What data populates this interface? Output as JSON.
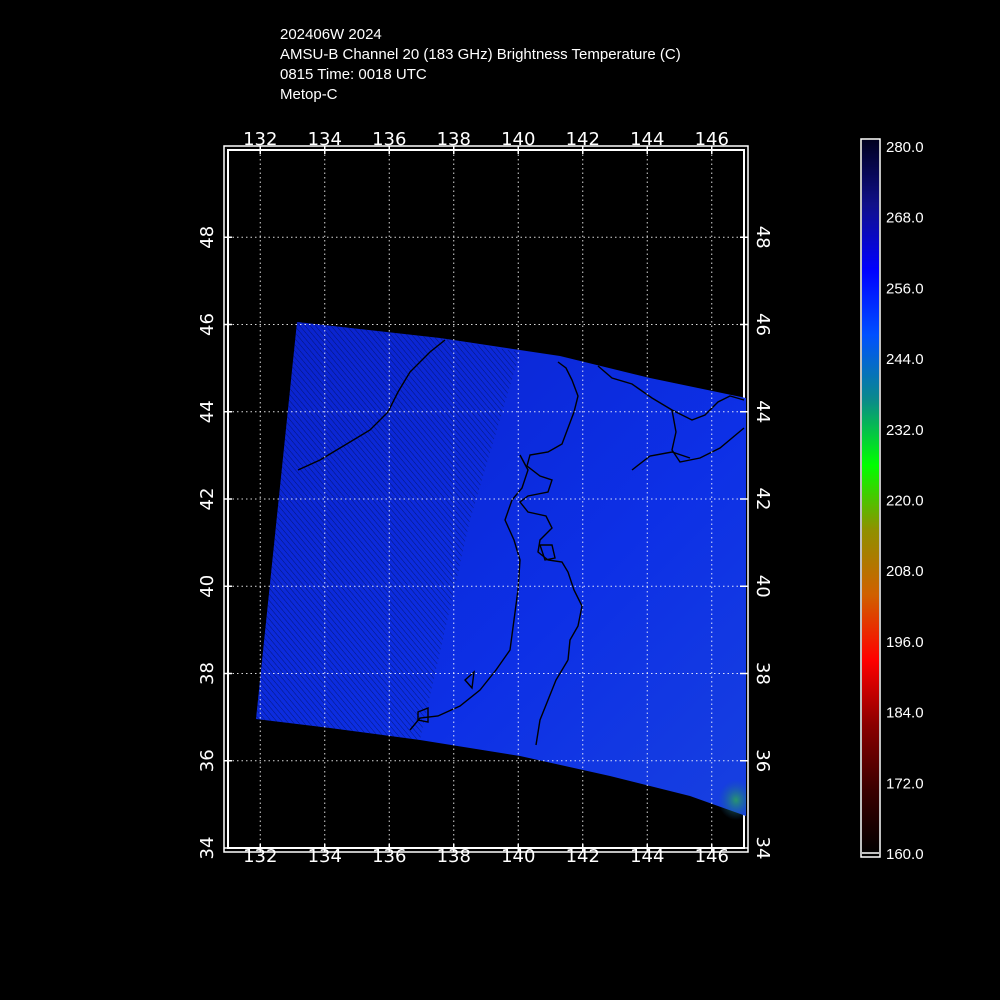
{
  "header": {
    "line1": "202406W 2024",
    "line2": "AMSU-B Channel 20 (183 GHz) Brightness Temperature (C)",
    "line3": "0815 Time: 0018 UTC",
    "line4": "Metop-C"
  },
  "map": {
    "lon_range": [
      131,
      147
    ],
    "lat_range": [
      34,
      50
    ],
    "lon_ticks": [
      "132",
      "134",
      "136",
      "138",
      "140",
      "142",
      "144",
      "146"
    ],
    "lat_ticks": [
      "34",
      "36",
      "38",
      "40",
      "42",
      "44",
      "46",
      "48"
    ],
    "grid": true,
    "swath_color": "#0d2bdd",
    "coastline_color": "#000000",
    "grid_color": "#ffffff"
  },
  "colorbar": {
    "range": [
      160.0,
      280.0
    ],
    "labels": [
      "280.0",
      "268.0",
      "256.0",
      "244.0",
      "232.0",
      "220.0",
      "208.0",
      "196.0",
      "184.0",
      "172.0",
      "160.0"
    ],
    "colors": [
      "#000000",
      "#3a0000",
      "#8a0000",
      "#ff0000",
      "#d06000",
      "#909000",
      "#00ff00",
      "#0a8a8a",
      "#0050ff",
      "#0000ff",
      "#10108a",
      "#000020"
    ]
  }
}
